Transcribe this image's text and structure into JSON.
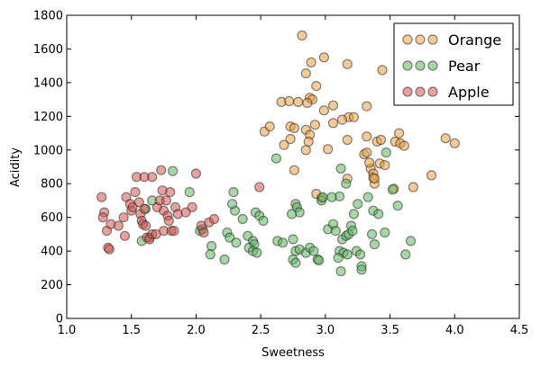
{
  "chart_data": {
    "type": "scatter",
    "title": "",
    "xlabel": "Sweetness",
    "ylabel": "Acidity",
    "xlim": [
      1.0,
      4.5
    ],
    "ylim": [
      0,
      1800
    ],
    "xticks": [
      "1.0",
      "1.5",
      "2.0",
      "2.5",
      "3.0",
      "3.5",
      "4.0",
      "4.5"
    ],
    "xtick_values": [
      1.0,
      1.5,
      2.0,
      2.5,
      3.0,
      3.5,
      4.0,
      4.5
    ],
    "yticks": [
      "0",
      "200",
      "400",
      "600",
      "800",
      "1000",
      "1200",
      "1400",
      "1600",
      "1800"
    ],
    "ytick_values": [
      0,
      200,
      400,
      600,
      800,
      1000,
      1200,
      1400,
      1600,
      1800
    ],
    "grid": false,
    "legend_position": "top-right",
    "series": [
      {
        "name": "Orange",
        "color": "#f0a040",
        "points": [
          [
            2.82,
            1680
          ],
          [
            3.44,
            1475
          ],
          [
            3.17,
            1510
          ],
          [
            2.99,
            1550
          ],
          [
            2.89,
            1520
          ],
          [
            2.85,
            1455
          ],
          [
            2.93,
            1380
          ],
          [
            2.88,
            1310
          ],
          [
            2.9,
            1300
          ],
          [
            2.66,
            1285
          ],
          [
            2.72,
            1290
          ],
          [
            2.79,
            1285
          ],
          [
            2.86,
            1280
          ],
          [
            3.06,
            1265
          ],
          [
            2.99,
            1235
          ],
          [
            3.32,
            1260
          ],
          [
            3.18,
            1195
          ],
          [
            3.22,
            1195
          ],
          [
            3.13,
            1180
          ],
          [
            2.73,
            1140
          ],
          [
            2.76,
            1130
          ],
          [
            2.92,
            1150
          ],
          [
            2.85,
            1120
          ],
          [
            2.88,
            1090
          ],
          [
            3.06,
            1160
          ],
          [
            2.53,
            1110
          ],
          [
            2.57,
            1140
          ],
          [
            3.32,
            1080
          ],
          [
            3.4,
            1050
          ],
          [
            3.43,
            1060
          ],
          [
            3.54,
            1050
          ],
          [
            3.57,
            1100
          ],
          [
            3.58,
            1040
          ],
          [
            3.61,
            1025
          ],
          [
            3.93,
            1070
          ],
          [
            4.0,
            1040
          ],
          [
            2.87,
            1050
          ],
          [
            2.85,
            1000
          ],
          [
            2.68,
            1030
          ],
          [
            2.73,
            1065
          ],
          [
            3.17,
            1060
          ],
          [
            3.02,
            1005
          ],
          [
            3.3,
            975
          ],
          [
            3.32,
            985
          ],
          [
            3.35,
            890
          ],
          [
            3.34,
            925
          ],
          [
            3.42,
            920
          ],
          [
            3.46,
            910
          ],
          [
            3.37,
            860
          ],
          [
            3.38,
            800
          ],
          [
            3.37,
            835
          ],
          [
            3.38,
            830
          ],
          [
            3.17,
            830
          ],
          [
            2.76,
            880
          ],
          [
            3.82,
            850
          ],
          [
            3.53,
            770
          ],
          [
            3.68,
            780
          ],
          [
            2.93,
            740
          ],
          [
            2.97,
            715
          ]
        ]
      },
      {
        "name": "Pear",
        "color": "#5cb85c",
        "points": [
          [
            2.62,
            950
          ],
          [
            3.12,
            890
          ],
          [
            3.16,
            800
          ],
          [
            3.47,
            985
          ],
          [
            3.52,
            765
          ],
          [
            2.29,
            750
          ],
          [
            1.95,
            750
          ],
          [
            3.22,
            620
          ],
          [
            3.25,
            680
          ],
          [
            3.33,
            720
          ],
          [
            3.37,
            640
          ],
          [
            3.11,
            725
          ],
          [
            3.05,
            720
          ],
          [
            2.97,
            700
          ],
          [
            2.98,
            720
          ],
          [
            2.77,
            680
          ],
          [
            2.78,
            660
          ],
          [
            2.8,
            630
          ],
          [
            2.74,
            620
          ],
          [
            2.46,
            630
          ],
          [
            2.49,
            610
          ],
          [
            2.52,
            580
          ],
          [
            2.36,
            590
          ],
          [
            2.3,
            640
          ],
          [
            2.28,
            680
          ],
          [
            2.03,
            520
          ],
          [
            2.05,
            530
          ],
          [
            1.82,
            875
          ],
          [
            1.66,
            700
          ],
          [
            1.61,
            650
          ],
          [
            1.58,
            460
          ],
          [
            1.64,
            480
          ],
          [
            2.24,
            510
          ],
          [
            2.26,
            480
          ],
          [
            2.31,
            450
          ],
          [
            2.4,
            490
          ],
          [
            2.44,
            460
          ],
          [
            2.45,
            440
          ],
          [
            2.41,
            420
          ],
          [
            2.44,
            400
          ],
          [
            2.47,
            390
          ],
          [
            2.12,
            430
          ],
          [
            2.11,
            380
          ],
          [
            2.22,
            350
          ],
          [
            2.63,
            460
          ],
          [
            2.67,
            450
          ],
          [
            2.75,
            470
          ],
          [
            2.77,
            400
          ],
          [
            2.8,
            410
          ],
          [
            2.85,
            390
          ],
          [
            2.88,
            420
          ],
          [
            2.91,
            400
          ],
          [
            2.94,
            350
          ],
          [
            2.95,
            345
          ],
          [
            2.75,
            350
          ],
          [
            2.77,
            330
          ],
          [
            3.02,
            530
          ],
          [
            3.06,
            560
          ],
          [
            3.08,
            520
          ],
          [
            3.13,
            470
          ],
          [
            3.16,
            490
          ],
          [
            3.18,
            500
          ],
          [
            3.2,
            550
          ],
          [
            3.21,
            520
          ],
          [
            3.11,
            400
          ],
          [
            3.14,
            390
          ],
          [
            3.17,
            380
          ],
          [
            3.1,
            360
          ],
          [
            3.12,
            280
          ],
          [
            3.24,
            400
          ],
          [
            3.27,
            380
          ],
          [
            3.28,
            310
          ],
          [
            3.28,
            290
          ],
          [
            3.36,
            500
          ],
          [
            3.38,
            440
          ],
          [
            3.41,
            620
          ],
          [
            3.46,
            510
          ],
          [
            3.56,
            670
          ],
          [
            3.62,
            380
          ],
          [
            3.66,
            460
          ]
        ]
      },
      {
        "name": "Apple",
        "color": "#d9534f",
        "points": [
          [
            1.27,
            720
          ],
          [
            1.29,
            630
          ],
          [
            1.28,
            600
          ],
          [
            1.31,
            520
          ],
          [
            1.32,
            420
          ],
          [
            1.33,
            410
          ],
          [
            1.34,
            560
          ],
          [
            1.4,
            550
          ],
          [
            1.44,
            600
          ],
          [
            1.46,
            720
          ],
          [
            1.45,
            490
          ],
          [
            1.49,
            680
          ],
          [
            1.5,
            640
          ],
          [
            1.51,
            660
          ],
          [
            1.53,
            750
          ],
          [
            1.54,
            840
          ],
          [
            1.56,
            690
          ],
          [
            1.57,
            620
          ],
          [
            1.58,
            580
          ],
          [
            1.59,
            560
          ],
          [
            1.6,
            650
          ],
          [
            1.61,
            550
          ],
          [
            1.62,
            480
          ],
          [
            1.64,
            470
          ],
          [
            1.66,
            500
          ],
          [
            1.6,
            840
          ],
          [
            1.66,
            840
          ],
          [
            1.7,
            660
          ],
          [
            1.72,
            700
          ],
          [
            1.73,
            880
          ],
          [
            1.74,
            760
          ],
          [
            1.75,
            640
          ],
          [
            1.75,
            520
          ],
          [
            1.77,
            700
          ],
          [
            1.78,
            610
          ],
          [
            1.79,
            580
          ],
          [
            1.8,
            750
          ],
          [
            1.81,
            520
          ],
          [
            1.83,
            520
          ],
          [
            1.84,
            660
          ],
          [
            1.86,
            620
          ],
          [
            1.92,
            630
          ],
          [
            1.97,
            660
          ],
          [
            2.0,
            860
          ],
          [
            2.04,
            550
          ],
          [
            2.06,
            510
          ],
          [
            2.1,
            570
          ],
          [
            2.14,
            590
          ],
          [
            2.49,
            780
          ],
          [
            1.69,
            500
          ]
        ]
      }
    ]
  }
}
